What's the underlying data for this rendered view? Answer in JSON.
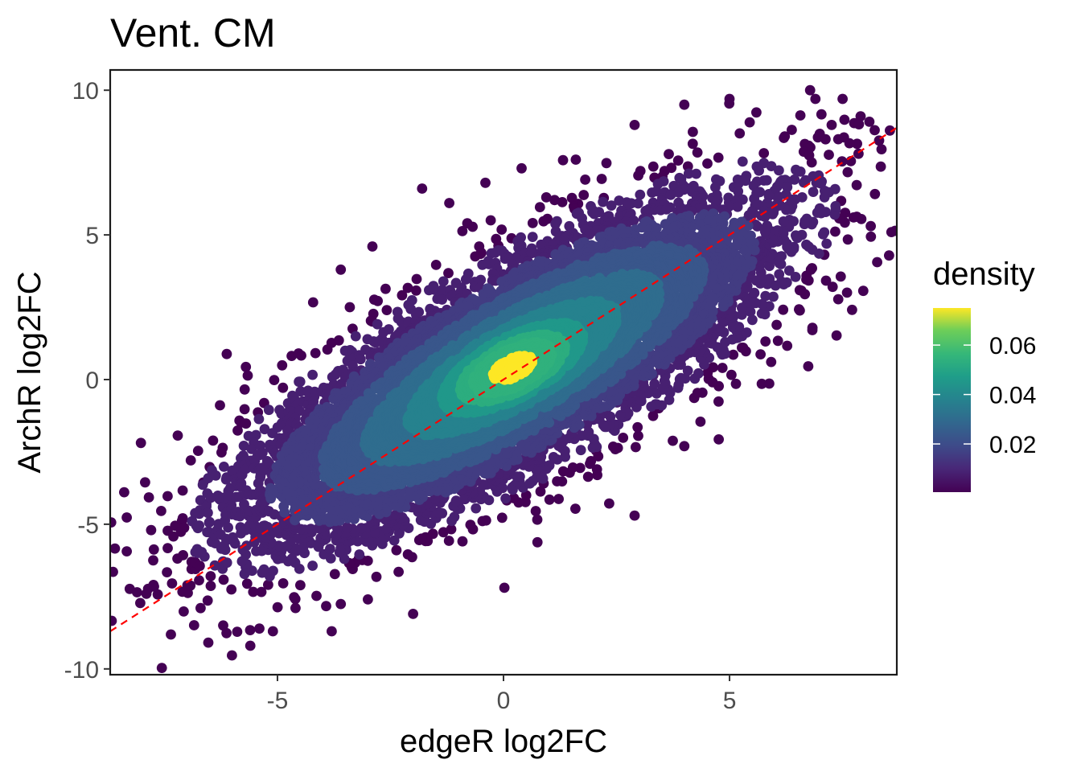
{
  "chart_data": {
    "type": "scatter",
    "title": "Vent. CM",
    "xlabel": "edgeR log2FC",
    "ylabel": "ArchR log2FC",
    "xlim": [
      -8.7,
      8.7
    ],
    "ylim": [
      -10.2,
      10.7
    ],
    "x_ticks": [
      -5,
      0,
      5
    ],
    "x_tick_labels": [
      "-5",
      "0",
      "5"
    ],
    "y_ticks": [
      -10,
      -5,
      0,
      5,
      10
    ],
    "y_tick_labels": [
      "-10",
      "-5",
      "0",
      "5",
      "10"
    ],
    "grid": false,
    "color_by": "density",
    "colorscale": "viridis",
    "legend": {
      "title": "density",
      "position": "right",
      "range": [
        0.0005,
        0.075
      ],
      "ticks": [
        0.02,
        0.04,
        0.06
      ],
      "tick_labels": [
        "0.02",
        "0.04",
        "0.06"
      ]
    },
    "reference_line": {
      "slope": 1,
      "intercept": 0,
      "color": "#ff0000",
      "style": "dashed"
    },
    "point_cloud": {
      "center": [
        0.2,
        0.4
      ],
      "x_range": [
        -7.9,
        7.9
      ],
      "y_range": [
        -9.2,
        9.9
      ],
      "correlation": 0.79,
      "peak_density_region": {
        "x": [
          0.0,
          0.6
        ],
        "y": [
          0.3,
          1.1
        ]
      }
    },
    "points": [
      {
        "x": -7.9,
        "y": -7.4
      },
      {
        "x": -6.9,
        "y": -6.3
      },
      {
        "x": -6.7,
        "y": -7.9
      },
      {
        "x": -6.4,
        "y": -5.4
      },
      {
        "x": -6.2,
        "y": -8.5
      },
      {
        "x": -5.9,
        "y": -4.7
      },
      {
        "x": -5.6,
        "y": -9.2
      },
      {
        "x": -5.4,
        "y": -3.9
      },
      {
        "x": -5.1,
        "y": -8.7
      },
      {
        "x": -4.9,
        "y": -2.1
      },
      {
        "x": -4.3,
        "y": -1.2
      },
      {
        "x": -3.8,
        "y": -8.7
      },
      {
        "x": -3.6,
        "y": 3.8
      },
      {
        "x": -3.4,
        "y": 2.5
      },
      {
        "x": -3.0,
        "y": -7.6
      },
      {
        "x": -2.9,
        "y": 4.6
      },
      {
        "x": -2.0,
        "y": -8.1
      },
      {
        "x": -1.8,
        "y": 6.6
      },
      {
        "x": -1.2,
        "y": 6.1
      },
      {
        "x": -0.8,
        "y": 5.4
      },
      {
        "x": -0.4,
        "y": 6.8
      },
      {
        "x": 0.4,
        "y": 7.3
      },
      {
        "x": 1.6,
        "y": 7.6
      },
      {
        "x": 2.9,
        "y": 8.8
      },
      {
        "x": 2.9,
        "y": -4.7
      },
      {
        "x": 4.0,
        "y": 9.5
      },
      {
        "x": 4.0,
        "y": -2.3
      },
      {
        "x": 5.0,
        "y": 9.7
      },
      {
        "x": 5.3,
        "y": 1.1
      },
      {
        "x": 6.9,
        "y": 9.7
      },
      {
        "x": 7.1,
        "y": 6.3
      },
      {
        "x": 7.5,
        "y": 9.7
      },
      {
        "x": 7.9,
        "y": 9.1
      },
      {
        "x": 6.6,
        "y": 5.0
      },
      {
        "x": 6.8,
        "y": 3.8
      }
    ]
  }
}
